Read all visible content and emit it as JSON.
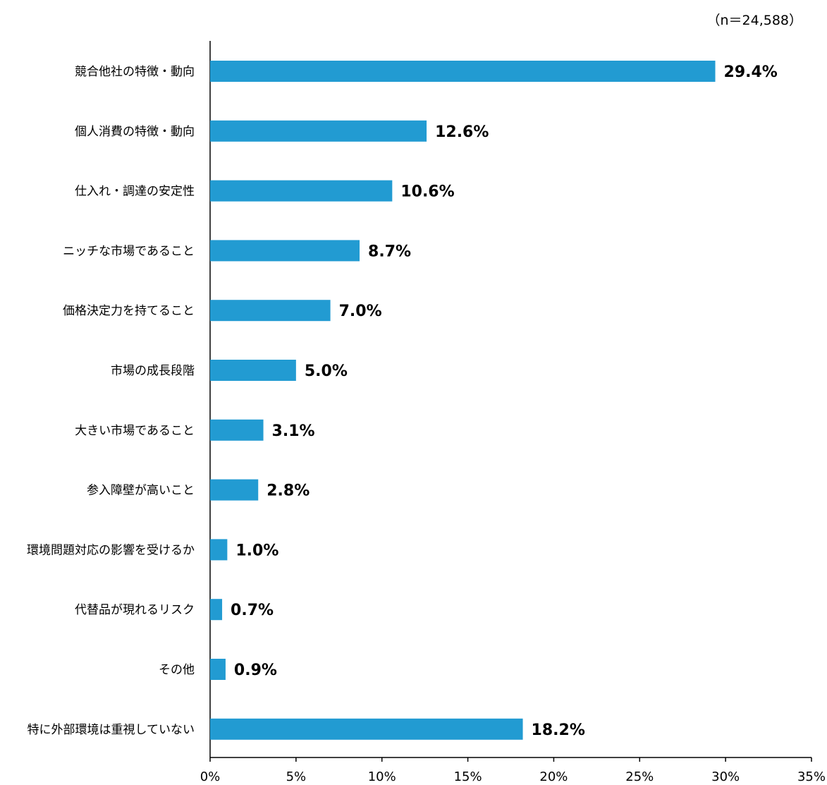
{
  "note": "（n＝24,588）",
  "chart_data": {
    "type": "bar",
    "orientation": "horizontal",
    "categories": [
      "競合他社の特徴・動向",
      "個人消費の特徴・動向",
      "仕入れ・調達の安定性",
      "ニッチな市場であること",
      "価格決定力を持てること",
      "市場の成長段階",
      "大きい市場であること",
      "参入障壁が高いこと",
      "環境問題対応の影響を受けるか",
      "代替品が現れるリスク",
      "その他",
      "特に外部環境は重視していない"
    ],
    "values": [
      29.4,
      12.6,
      10.6,
      8.7,
      7.0,
      5.0,
      3.1,
      2.8,
      1.0,
      0.7,
      0.9,
      18.2
    ],
    "value_labels": [
      "29.4%",
      "12.6%",
      "10.6%",
      "8.7%",
      "7.0%",
      "5.0%",
      "3.1%",
      "2.8%",
      "1.0%",
      "0.7%",
      "0.9%",
      "18.2%"
    ],
    "xlim": [
      0,
      35
    ],
    "xticks": [
      0,
      5,
      10,
      15,
      20,
      25,
      30,
      35
    ],
    "xtick_labels": [
      "0%",
      "5%",
      "10%",
      "15%",
      "20%",
      "25%",
      "30%",
      "35%"
    ],
    "bar_color": "#229bd2",
    "grid": false
  }
}
